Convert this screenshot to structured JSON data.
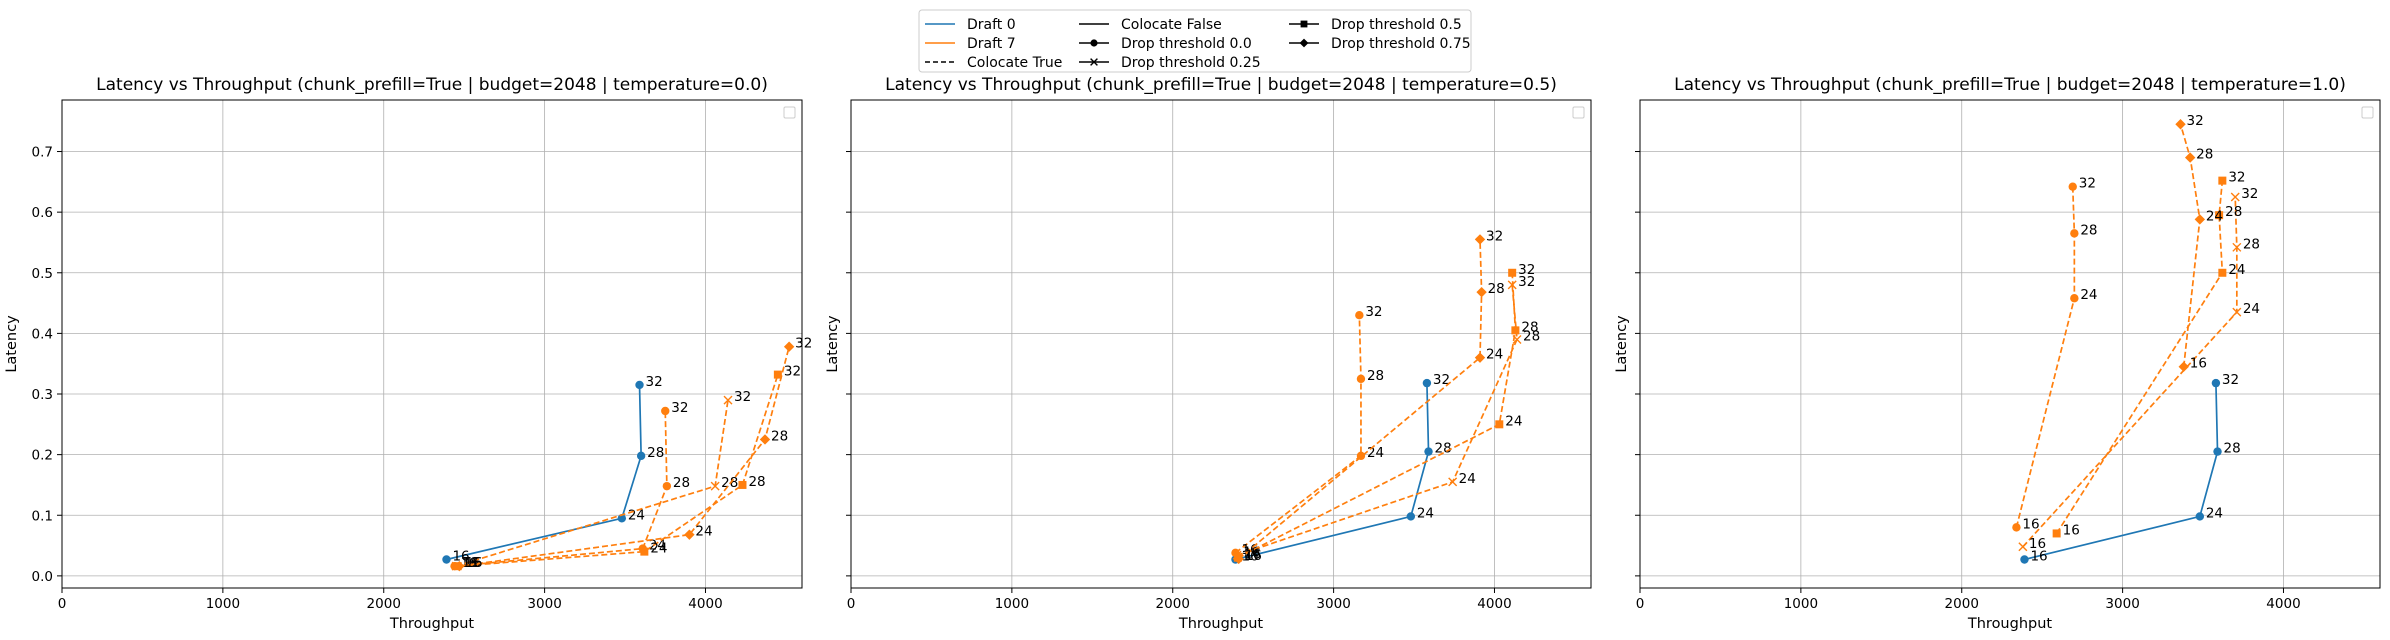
{
  "legend": {
    "placement": "top-center",
    "entries": [
      {
        "label": "Draft 0",
        "kind": "line",
        "color": "#1f77b4",
        "dash": "solid"
      },
      {
        "label": "Draft 7",
        "kind": "line",
        "color": "#ff7f0e",
        "dash": "solid"
      },
      {
        "label": "Colocate True",
        "kind": "line",
        "color": "#000000",
        "dash": "dashed"
      },
      {
        "label": "Colocate False",
        "kind": "line",
        "color": "#000000",
        "dash": "solid"
      },
      {
        "label": "Drop threshold 0.0",
        "kind": "marker",
        "color": "#000000",
        "marker": "circle"
      },
      {
        "label": "Drop threshold 0.25",
        "kind": "marker",
        "color": "#000000",
        "marker": "x"
      },
      {
        "label": "Drop threshold 0.5",
        "kind": "marker",
        "color": "#000000",
        "marker": "square"
      },
      {
        "label": "Drop threshold 0.75",
        "kind": "marker",
        "color": "#000000",
        "marker": "diamond"
      }
    ]
  },
  "chart_data": [
    {
      "type": "line",
      "title": "Latency vs Throughput (chunk_prefill=True | budget=2048 | temperature=0.0)",
      "xlabel": "Throughput",
      "ylabel": "Latency",
      "xlim": [
        0,
        4600
      ],
      "ylim": [
        -0.02,
        0.785
      ],
      "xticks": [
        0,
        1000,
        2000,
        3000,
        4000
      ],
      "yticks": [
        0.0,
        0.1,
        0.2,
        0.3,
        0.4,
        0.5,
        0.6,
        0.7
      ],
      "grid": true,
      "empty_legend_box": "top-right",
      "series": [
        {
          "draft": 0,
          "colocate": false,
          "drop_threshold": 0.0,
          "color": "#1f77b4",
          "dash": "solid",
          "marker": "circle",
          "points": [
            {
              "x": 2390,
              "y": 0.027,
              "label": "16"
            },
            {
              "x": 3480,
              "y": 0.095,
              "label": "24"
            },
            {
              "x": 3600,
              "y": 0.198,
              "label": "28"
            },
            {
              "x": 3590,
              "y": 0.315,
              "label": "32"
            }
          ]
        },
        {
          "draft": 7,
          "colocate": true,
          "drop_threshold": 0.0,
          "color": "#ff7f0e",
          "dash": "dashed",
          "marker": "circle",
          "points": [
            {
              "x": 2440,
              "y": 0.016,
              "label": "16"
            },
            {
              "x": 3610,
              "y": 0.045,
              "label": "24"
            },
            {
              "x": 3760,
              "y": 0.148,
              "label": "28"
            },
            {
              "x": 3750,
              "y": 0.272,
              "label": "32"
            }
          ]
        },
        {
          "draft": 7,
          "colocate": true,
          "drop_threshold": 0.25,
          "color": "#ff7f0e",
          "dash": "dashed",
          "marker": "x",
          "points": [
            {
              "x": 2450,
              "y": 0.016,
              "label": "16"
            },
            {
              "x": 4060,
              "y": 0.148,
              "label": "28"
            },
            {
              "x": 4140,
              "y": 0.29,
              "label": "32"
            }
          ]
        },
        {
          "draft": 7,
          "colocate": true,
          "drop_threshold": 0.5,
          "color": "#ff7f0e",
          "dash": "dashed",
          "marker": "square",
          "points": [
            {
              "x": 2460,
              "y": 0.016,
              "label": "16"
            },
            {
              "x": 3620,
              "y": 0.04,
              "label": "24"
            },
            {
              "x": 4230,
              "y": 0.15,
              "label": "28"
            },
            {
              "x": 4450,
              "y": 0.332,
              "label": "32"
            }
          ]
        },
        {
          "draft": 7,
          "colocate": true,
          "drop_threshold": 0.75,
          "color": "#ff7f0e",
          "dash": "dashed",
          "marker": "diamond",
          "points": [
            {
              "x": 2470,
              "y": 0.016,
              "label": "16"
            },
            {
              "x": 3900,
              "y": 0.068,
              "label": "24"
            },
            {
              "x": 4370,
              "y": 0.225,
              "label": "28"
            },
            {
              "x": 4520,
              "y": 0.378,
              "label": "32"
            }
          ]
        }
      ]
    },
    {
      "type": "line",
      "title": "Latency vs Throughput (chunk_prefill=True | budget=2048 | temperature=0.5)",
      "xlabel": "Throughput",
      "ylabel": "Latency",
      "xlim": [
        0,
        4600
      ],
      "ylim": [
        -0.02,
        0.785
      ],
      "xticks": [
        0,
        1000,
        2000,
        3000,
        4000
      ],
      "yticks": [
        0.0,
        0.1,
        0.2,
        0.3,
        0.4,
        0.5,
        0.6,
        0.7
      ],
      "grid": true,
      "empty_legend_box": "top-right",
      "series": [
        {
          "draft": 0,
          "colocate": false,
          "drop_threshold": 0.0,
          "color": "#1f77b4",
          "dash": "solid",
          "marker": "circle",
          "points": [
            {
              "x": 2390,
              "y": 0.027,
              "label": "16"
            },
            {
              "x": 3480,
              "y": 0.098,
              "label": "24"
            },
            {
              "x": 3590,
              "y": 0.205,
              "label": "28"
            },
            {
              "x": 3580,
              "y": 0.318,
              "label": "32"
            }
          ]
        },
        {
          "draft": 7,
          "colocate": true,
          "drop_threshold": 0.0,
          "color": "#ff7f0e",
          "dash": "dashed",
          "marker": "circle",
          "points": [
            {
              "x": 2390,
              "y": 0.038,
              "label": "16"
            },
            {
              "x": 3170,
              "y": 0.198,
              "label": "24"
            },
            {
              "x": 3170,
              "y": 0.325,
              "label": "28"
            },
            {
              "x": 3160,
              "y": 0.43,
              "label": "32"
            }
          ]
        },
        {
          "draft": 7,
          "colocate": true,
          "drop_threshold": 0.25,
          "color": "#ff7f0e",
          "dash": "dashed",
          "marker": "x",
          "points": [
            {
              "x": 2400,
              "y": 0.034,
              "label": "16"
            },
            {
              "x": 3740,
              "y": 0.155,
              "label": "24"
            },
            {
              "x": 4140,
              "y": 0.39,
              "label": "28"
            },
            {
              "x": 4110,
              "y": 0.48,
              "label": "32"
            }
          ]
        },
        {
          "draft": 7,
          "colocate": true,
          "drop_threshold": 0.5,
          "color": "#ff7f0e",
          "dash": "dashed",
          "marker": "square",
          "points": [
            {
              "x": 2405,
              "y": 0.03,
              "label": "16"
            },
            {
              "x": 4030,
              "y": 0.25,
              "label": "24"
            },
            {
              "x": 4130,
              "y": 0.405,
              "label": "28"
            },
            {
              "x": 4110,
              "y": 0.5,
              "label": "32"
            }
          ]
        },
        {
          "draft": 7,
          "colocate": true,
          "drop_threshold": 0.75,
          "color": "#ff7f0e",
          "dash": "dashed",
          "marker": "diamond",
          "points": [
            {
              "x": 2410,
              "y": 0.028,
              "label": "16"
            },
            {
              "x": 3910,
              "y": 0.36,
              "label": "24"
            },
            {
              "x": 3920,
              "y": 0.468,
              "label": "28"
            },
            {
              "x": 3910,
              "y": 0.555,
              "label": "32"
            }
          ]
        }
      ]
    },
    {
      "type": "line",
      "title": "Latency vs Throughput (chunk_prefill=True | budget=2048 | temperature=1.0)",
      "xlabel": "Throughput",
      "ylabel": "Latency",
      "xlim": [
        0,
        4600
      ],
      "ylim": [
        -0.02,
        0.785
      ],
      "xticks": [
        0,
        1000,
        2000,
        3000,
        4000
      ],
      "yticks": [
        0.0,
        0.1,
        0.2,
        0.3,
        0.4,
        0.5,
        0.6,
        0.7
      ],
      "grid": true,
      "empty_legend_box": "top-right",
      "series": [
        {
          "draft": 0,
          "colocate": false,
          "drop_threshold": 0.0,
          "color": "#1f77b4",
          "dash": "solid",
          "marker": "circle",
          "points": [
            {
              "x": 2390,
              "y": 0.027,
              "label": "16"
            },
            {
              "x": 3480,
              "y": 0.098,
              "label": "24"
            },
            {
              "x": 3590,
              "y": 0.205,
              "label": "28"
            },
            {
              "x": 3580,
              "y": 0.318,
              "label": "32"
            }
          ]
        },
        {
          "draft": 7,
          "colocate": true,
          "drop_threshold": 0.0,
          "color": "#ff7f0e",
          "dash": "dashed",
          "marker": "circle",
          "points": [
            {
              "x": 2340,
              "y": 0.08,
              "label": "16"
            },
            {
              "x": 2700,
              "y": 0.458,
              "label": "24"
            },
            {
              "x": 2700,
              "y": 0.565,
              "label": "28"
            },
            {
              "x": 2690,
              "y": 0.642,
              "label": "32"
            }
          ]
        },
        {
          "draft": 7,
          "colocate": true,
          "drop_threshold": 0.25,
          "color": "#ff7f0e",
          "dash": "dashed",
          "marker": "x",
          "points": [
            {
              "x": 2380,
              "y": 0.048,
              "label": "16"
            },
            {
              "x": 3710,
              "y": 0.435,
              "label": "24"
            },
            {
              "x": 3710,
              "y": 0.542,
              "label": "28"
            },
            {
              "x": 3700,
              "y": 0.625,
              "label": "32"
            }
          ]
        },
        {
          "draft": 7,
          "colocate": true,
          "drop_threshold": 0.5,
          "color": "#ff7f0e",
          "dash": "dashed",
          "marker": "square",
          "points": [
            {
              "x": 2590,
              "y": 0.07,
              "label": "16"
            },
            {
              "x": 3620,
              "y": 0.5,
              "label": "24"
            },
            {
              "x": 3600,
              "y": 0.595,
              "label": "28"
            },
            {
              "x": 3620,
              "y": 0.652,
              "label": "32"
            }
          ]
        },
        {
          "draft": 7,
          "colocate": true,
          "drop_threshold": 0.75,
          "color": "#ff7f0e",
          "dash": "dashed",
          "marker": "diamond",
          "points": [
            {
              "x": 3380,
              "y": 0.345,
              "label": "16"
            },
            {
              "x": 3480,
              "y": 0.588,
              "label": "24"
            },
            {
              "x": 3420,
              "y": 0.69,
              "label": "28"
            },
            {
              "x": 3360,
              "y": 0.745,
              "label": "32"
            }
          ]
        }
      ]
    }
  ]
}
